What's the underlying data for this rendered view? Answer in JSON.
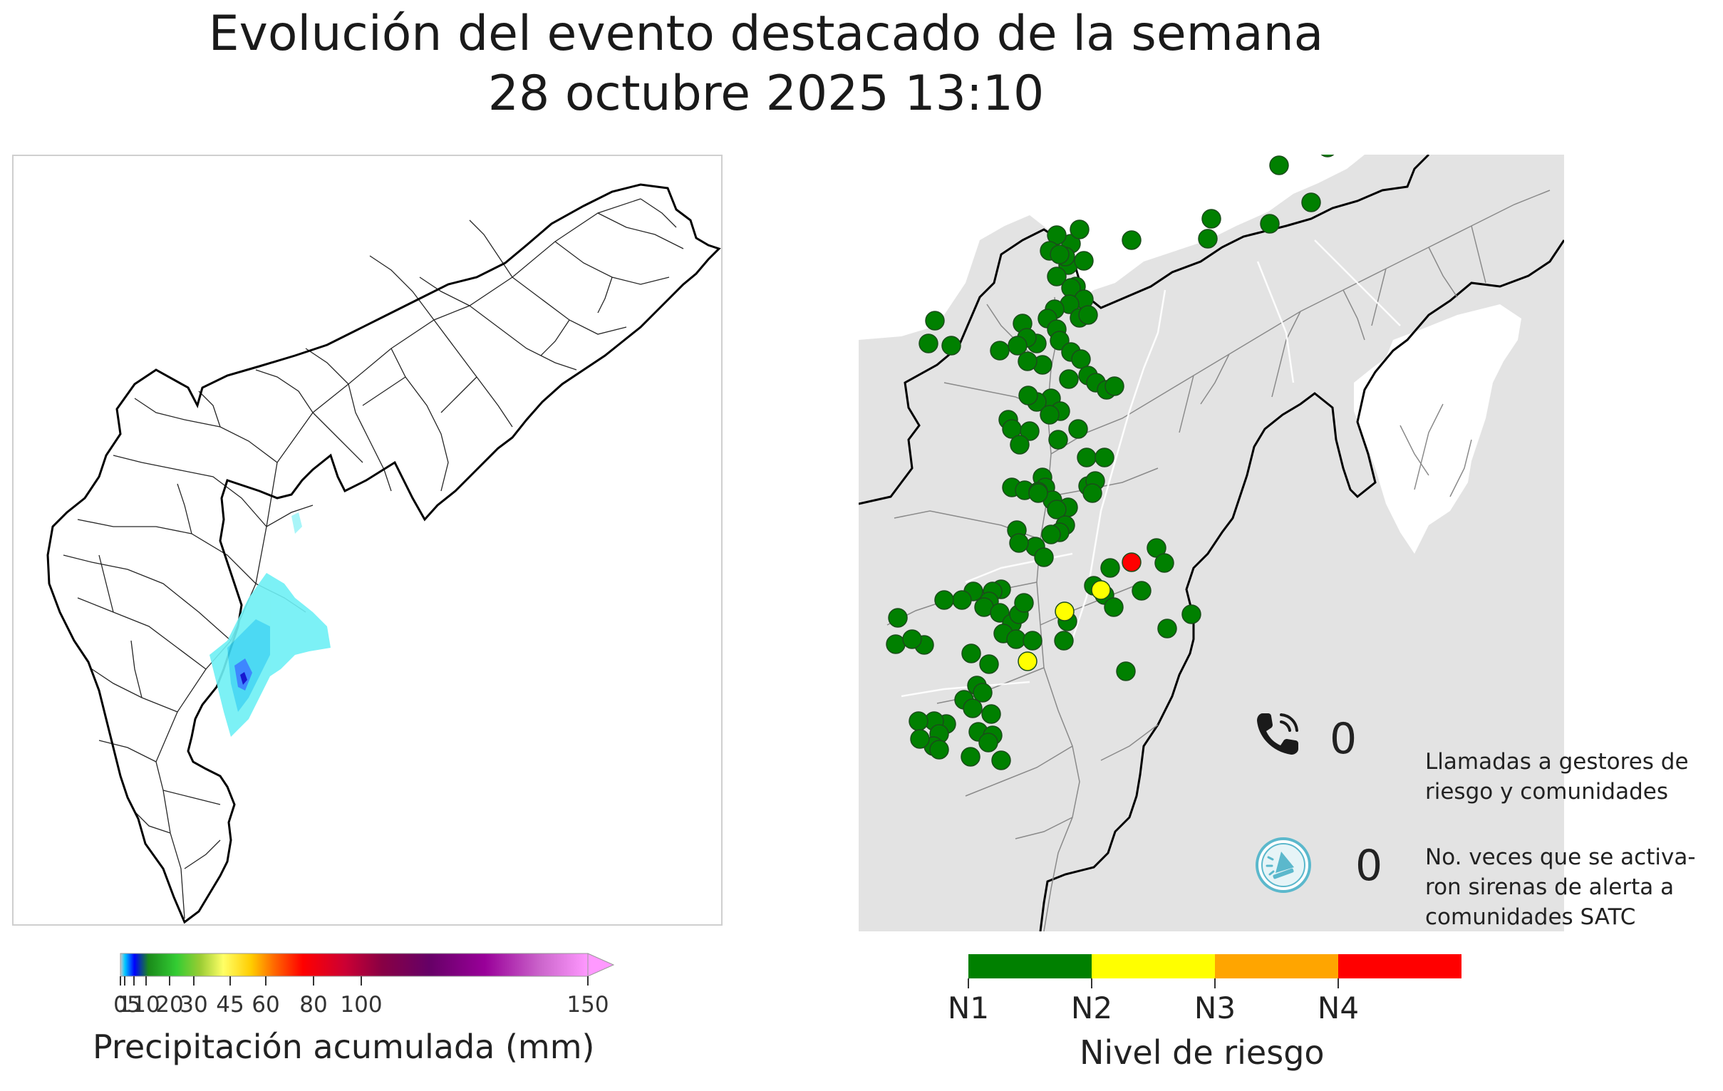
{
  "header": {
    "title": "Evolución del evento destacado de la semana",
    "datetime": "28 octubre 2025 13:10"
  },
  "precipitation_legend": {
    "label": "Precipitación acumulada (mm)",
    "ticks": [
      "0",
      "1",
      "5",
      "10",
      "20",
      "30",
      "45",
      "60",
      "80",
      "100",
      "150"
    ],
    "tick_values": [
      0,
      1,
      5,
      10,
      20,
      30,
      45,
      60,
      80,
      100,
      150
    ],
    "colors": [
      "#cccccc",
      "#00b4ff",
      "#0000ff",
      "#1a8a1a",
      "#33cc33",
      "#99cc33",
      "#ffff66",
      "#ffcc00",
      "#ff6600",
      "#ff0000",
      "#cc0033",
      "#880044",
      "#660066",
      "#990099",
      "#cc66cc",
      "#ff99ff"
    ]
  },
  "risk_legend": {
    "label": "Nivel de riesgo",
    "levels": [
      {
        "name": "N1",
        "color": "#008000"
      },
      {
        "name": "N2",
        "color": "#ffff00"
      },
      {
        "name": "N3",
        "color": "#ffa500"
      },
      {
        "name": "N4",
        "color": "#ff0000"
      }
    ]
  },
  "calls": {
    "icon": "phone-icon",
    "count": "0",
    "description": "Llamadas a gestores de\nriesgo y comunidades"
  },
  "sirens": {
    "icon": "siren-icon",
    "count": "0",
    "description": "No. veces que se activa-\nron sirenas de alerta a\ncomunidades SATC"
  },
  "risk_points_summary": {
    "N1": 155,
    "N2": 3,
    "N3": 0,
    "N4": 1
  }
}
